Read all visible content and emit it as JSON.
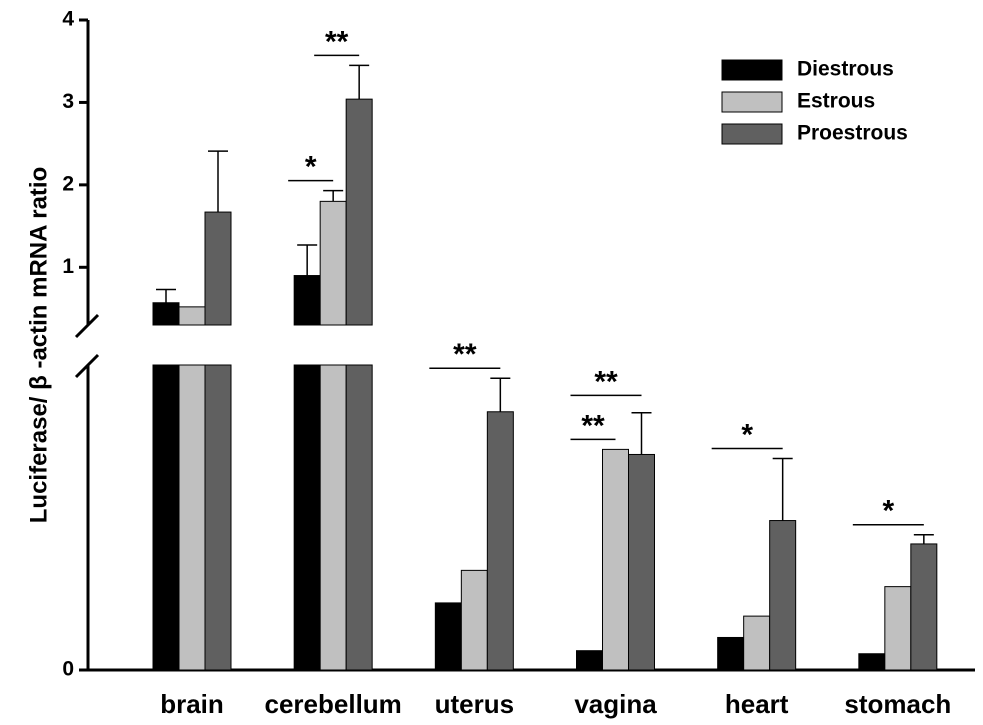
{
  "chart_data": {
    "type": "bar",
    "y_label": "Luciferase/ β -actin mRNA ratio",
    "categories": [
      "brain",
      "cerebellum",
      "uterus",
      "vagina",
      "heart",
      "stomach"
    ],
    "series": [
      {
        "name": "Diestrous",
        "color": "#000000",
        "values": [
          0.57,
          0.9,
          0.066,
          0.019,
          0.032,
          0.016
        ],
        "errors": [
          0.16,
          0.37,
          null,
          null,
          null,
          null
        ]
      },
      {
        "name": "Estrous",
        "color": "#c0c0c0",
        "values": [
          0.52,
          1.8,
          0.098,
          0.217,
          0.053,
          0.082
        ],
        "errors": [
          null,
          0.13,
          null,
          null,
          null,
          null
        ]
      },
      {
        "name": "Proestrous",
        "color": "#606060",
        "values": [
          1.67,
          3.04,
          0.254,
          0.212,
          0.147,
          0.124
        ],
        "errors": [
          0.74,
          0.41,
          0.033,
          0.041,
          0.061,
          0.009
        ]
      }
    ],
    "ylim": [
      0,
      4
    ],
    "ybreak": 0.3,
    "yticks": [
      0,
      1,
      2,
      3,
      4
    ],
    "legend": "upper right",
    "annotations": [
      {
        "text": "*",
        "category": 1,
        "between": [
          0,
          1
        ]
      },
      {
        "text": "**",
        "category": 1,
        "between": [
          1,
          2
        ]
      },
      {
        "text": "**",
        "category": 2,
        "between": [
          0,
          2
        ]
      },
      {
        "text": "**",
        "category": 3,
        "between": [
          0,
          1
        ]
      },
      {
        "text": "**",
        "category": 3,
        "between": [
          0,
          2
        ]
      },
      {
        "text": "*",
        "category": 4,
        "between": [
          0,
          2
        ]
      },
      {
        "text": "*",
        "category": 5,
        "between": [
          0,
          2
        ]
      }
    ]
  }
}
